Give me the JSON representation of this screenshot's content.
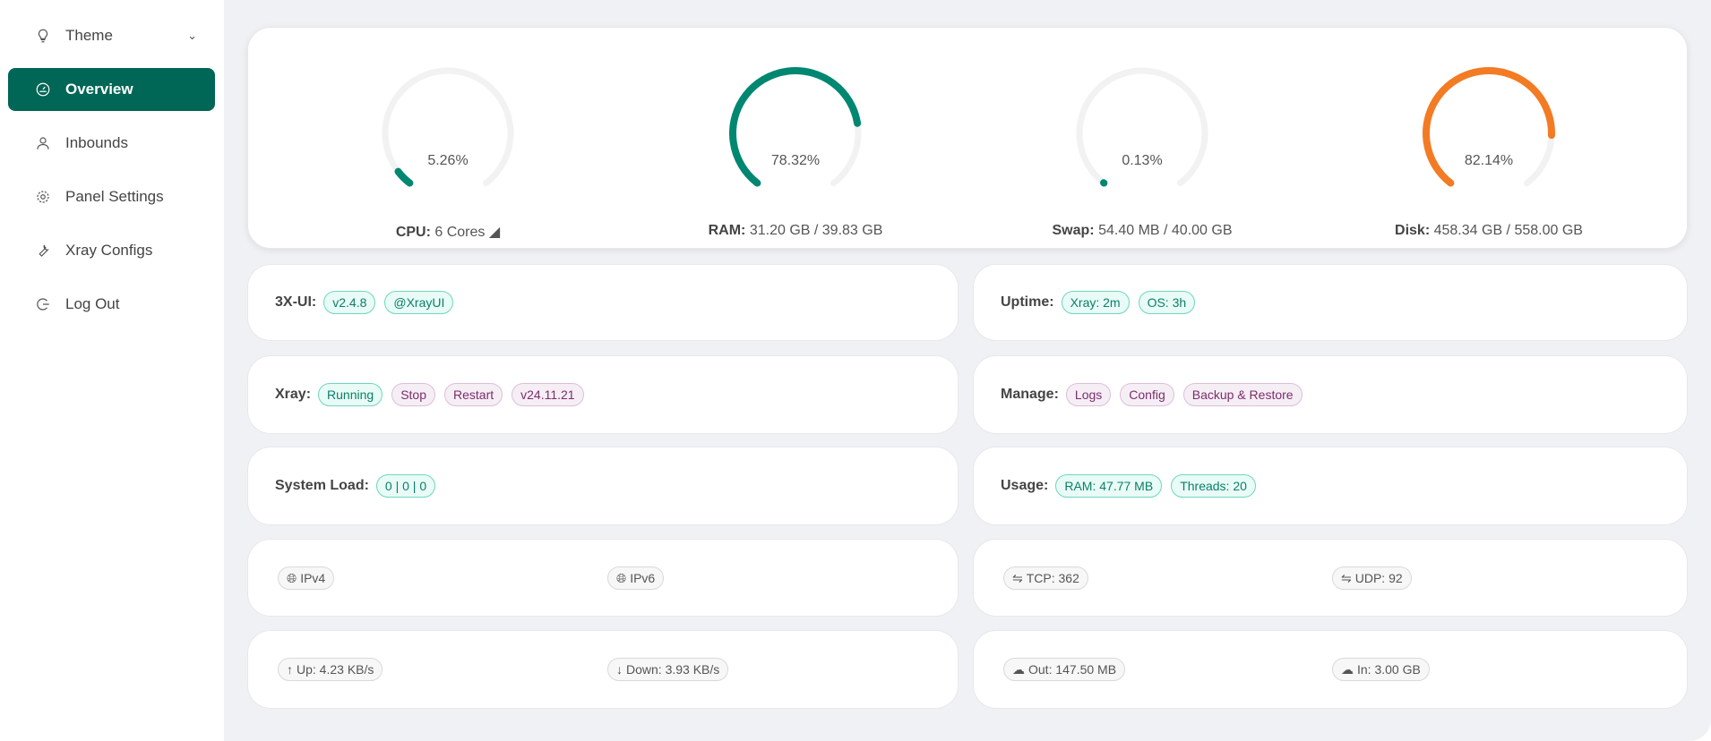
{
  "sidebar": {
    "items": [
      {
        "label": "Theme",
        "icon": "bulb-icon"
      },
      {
        "label": "Overview",
        "icon": "dashboard-icon",
        "active": true
      },
      {
        "label": "Inbounds",
        "icon": "user-icon"
      },
      {
        "label": "Panel Settings",
        "icon": "gear-icon"
      },
      {
        "label": "Xray Configs",
        "icon": "wrench-icon"
      },
      {
        "label": "Log Out",
        "icon": "logout-icon"
      }
    ]
  },
  "gauges": [
    {
      "name": "CPU",
      "value": "5.26%",
      "percent": 5.26,
      "detail": "6 Cores",
      "color": "#008771"
    },
    {
      "name": "RAM",
      "value": "78.32%",
      "percent": 78.32,
      "detail": "31.20 GB / 39.83 GB",
      "color": "#008771"
    },
    {
      "name": "Swap",
      "value": "0.13%",
      "percent": 0.13,
      "detail": "54.40 MB / 40.00 GB",
      "color": "#008771"
    },
    {
      "name": "Disk",
      "value": "82.14%",
      "percent": 82.14,
      "detail": "458.34 GB / 558.00 GB",
      "color": "#f37b24"
    }
  ],
  "panel": {
    "label": "3X-UI:",
    "tags": [
      "v2.4.8",
      "@XrayUI"
    ]
  },
  "uptime": {
    "label": "Uptime:",
    "tags": [
      "Xray: 2m",
      "OS: 3h"
    ]
  },
  "xray": {
    "label": "Xray:",
    "status": "Running",
    "actions": [
      "Stop",
      "Restart"
    ],
    "version": "v24.11.21"
  },
  "manage": {
    "label": "Manage:",
    "actions": [
      "Logs",
      "Config",
      "Backup & Restore"
    ]
  },
  "load": {
    "label": "System Load:",
    "value": "0 | 0 | 0"
  },
  "usage": {
    "label": "Usage:",
    "tags": [
      "RAM: 47.77 MB",
      "Threads: 20"
    ]
  },
  "ip": {
    "v4": "IPv4",
    "v6": "IPv6"
  },
  "conn": {
    "tcp": "TCP: 362",
    "udp": "UDP: 92"
  },
  "speed": {
    "up": "Up: 4.23 KB/s",
    "down": "Down: 3.93 KB/s"
  },
  "traffic": {
    "out": "Out: 147.50 MB",
    "in": "In: 3.00 GB"
  }
}
